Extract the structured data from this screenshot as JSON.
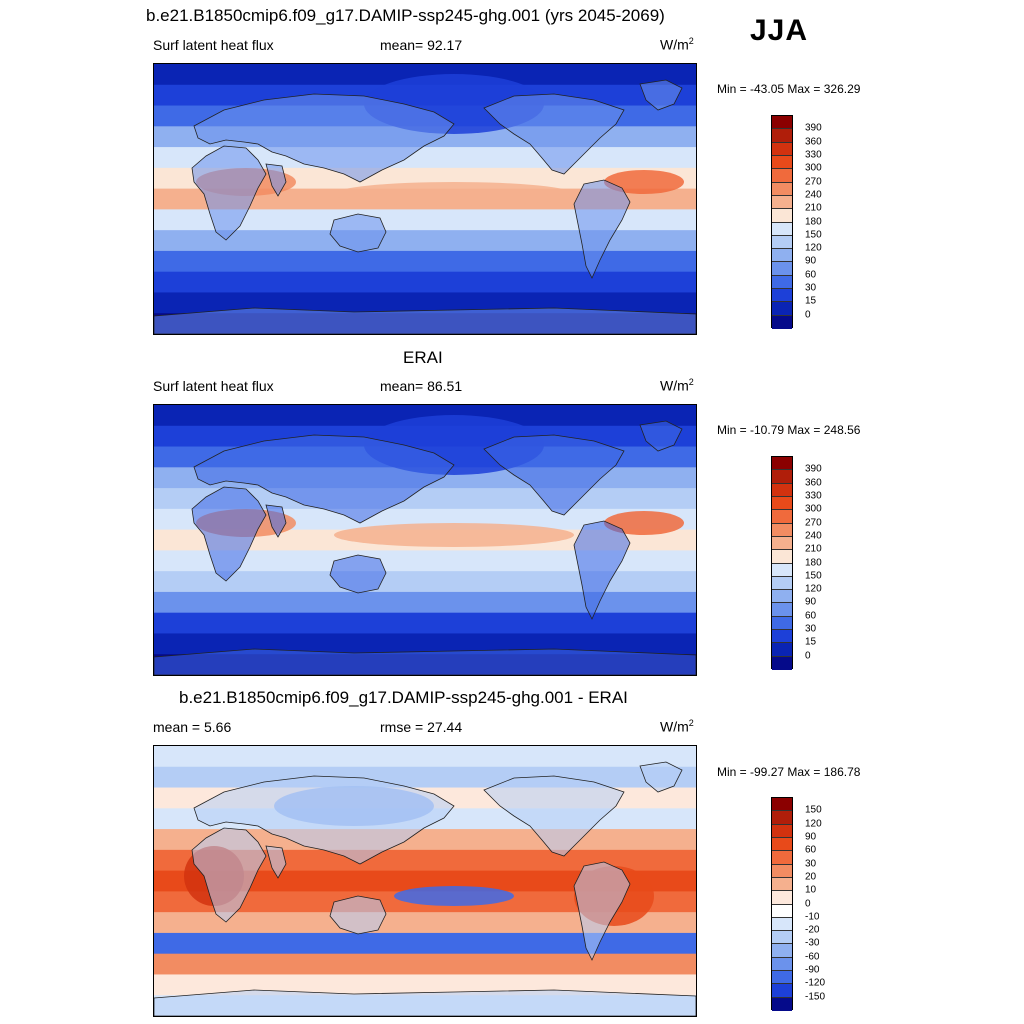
{
  "season": "JJA",
  "panels": [
    {
      "title": "b.e21.B1850cmip6.f09_g17.DAMIP-ssp245-ghg.001 (yrs 2045-2069)",
      "left_label": "Surf latent heat flux",
      "center_label": "mean=  92.17",
      "units": "W/m",
      "units_sup": "2",
      "minmax": "Min = -43.05 Max = 326.29",
      "colorbar": {
        "labels": [
          "390",
          "360",
          "330",
          "300",
          "270",
          "240",
          "210",
          "180",
          "150",
          "120",
          "90",
          "60",
          "30",
          "15",
          "0"
        ],
        "colors": [
          "#8b0000",
          "#b01e0a",
          "#d2320f",
          "#e84a1a",
          "#f06a3c",
          "#f28c62",
          "#f5b08e",
          "#fbe6d6",
          "#d7e6fa",
          "#b4cdf5",
          "#8fb0f0",
          "#6b92ec",
          "#3f6ae6",
          "#1d40d8",
          "#0a24b4",
          "#050a8a"
        ]
      },
      "field": "model"
    },
    {
      "title": "ERAI",
      "left_label": "Surf latent heat flux",
      "center_label": "mean=  86.51",
      "units": "W/m",
      "units_sup": "2",
      "minmax": "Min = -10.79 Max = 248.56",
      "colorbar": {
        "labels": [
          "390",
          "360",
          "330",
          "300",
          "270",
          "240",
          "210",
          "180",
          "150",
          "120",
          "90",
          "60",
          "30",
          "15",
          "0"
        ],
        "colors": [
          "#8b0000",
          "#b01e0a",
          "#d2320f",
          "#e84a1a",
          "#f06a3c",
          "#f28c62",
          "#f5b08e",
          "#fbe6d6",
          "#d7e6fa",
          "#b4cdf5",
          "#8fb0f0",
          "#6b92ec",
          "#3f6ae6",
          "#1d40d8",
          "#0a24b4",
          "#050a8a"
        ]
      },
      "field": "obs"
    },
    {
      "title": "b.e21.B1850cmip6.f09_g17.DAMIP-ssp245-ghg.001 - ERAI",
      "left_label": "mean =   5.66",
      "center_label": "rmse =  27.44",
      "units": "W/m",
      "units_sup": "2",
      "minmax": "Min = -99.27 Max = 186.78",
      "colorbar": {
        "labels": [
          "150",
          "120",
          "90",
          "60",
          "30",
          "20",
          "10",
          "0",
          "-10",
          "-20",
          "-30",
          "-60",
          "-90",
          "-120",
          "-150"
        ],
        "colors": [
          "#8b0000",
          "#b01e0a",
          "#d2320f",
          "#e84a1a",
          "#f06a3c",
          "#f28c62",
          "#f5b08e",
          "#fde8dc",
          "#ffffff",
          "#d7e6fa",
          "#b4cdf5",
          "#8fb0f0",
          "#6b92ec",
          "#3f6ae6",
          "#1d40d8",
          "#050a8a"
        ]
      },
      "field": "diff"
    }
  ]
}
